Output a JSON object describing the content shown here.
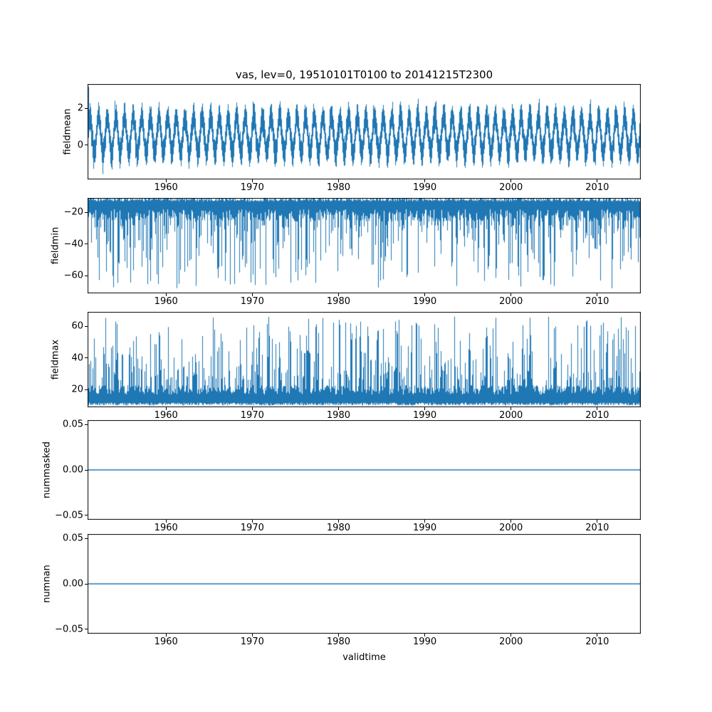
{
  "figure": {
    "title": "vas, lev=0, 19510101T0100 to 20141215T2300",
    "xlabel": "validtime",
    "background": "#ffffff",
    "line_color": "#1f77b4"
  },
  "chart_data": [
    {
      "type": "line",
      "name": "fieldmean",
      "ylabel": "fieldmean",
      "x_range": [
        1950.9,
        2015.05
      ],
      "ylim": [
        -1.9,
        3.35
      ],
      "xticks": [
        1960,
        1970,
        1980,
        1990,
        2000,
        2010
      ],
      "xtick_labels": [
        "1960",
        "1970",
        "1980",
        "1990",
        "2000",
        "2010"
      ],
      "yticks": [
        {
          "v": 2,
          "label": "2"
        },
        {
          "v": 0,
          "label": "0"
        }
      ],
      "grid": false,
      "legend": false,
      "series_color": "#1f77b4",
      "pattern": {
        "kind": "seasonal-band",
        "mean": 0.55,
        "seasonal_amplitude": 1.0,
        "band_halfwidth": [
          0.45,
          0.8
        ],
        "period_years": 1,
        "start_spike": 3.2,
        "description": "Dense annual oscillation 1951-2014, roughly between -1.5 and 2.6, initial spike near 3.2"
      }
    },
    {
      "type": "line",
      "name": "fieldmin",
      "ylabel": "fieldmin",
      "x_range": [
        1950.9,
        2015.05
      ],
      "ylim": [
        -71,
        -11
      ],
      "xticks": [
        1960,
        1970,
        1980,
        1990,
        2000,
        2010
      ],
      "xtick_labels": [
        "1960",
        "1970",
        "1980",
        "1990",
        "2000",
        "2010"
      ],
      "yticks": [
        {
          "v": -20,
          "label": "−20"
        },
        {
          "v": -40,
          "label": "−40"
        },
        {
          "v": -60,
          "label": "−60"
        }
      ],
      "grid": false,
      "legend": false,
      "series_color": "#1f77b4",
      "pattern": {
        "kind": "noise-band-spikes",
        "band": [
          -12,
          -22
        ],
        "band_jitter": 8,
        "spike_prob": 0.42,
        "spike_range": [
          -28,
          -68
        ],
        "description": "Dense band between about -12 and -30 with frequent downward spikes reaching about -70"
      }
    },
    {
      "type": "line",
      "name": "fieldmax",
      "ylabel": "fieldmax",
      "x_range": [
        1950.9,
        2015.05
      ],
      "ylim": [
        9,
        69
      ],
      "xticks": [
        1960,
        1970,
        1980,
        1990,
        2000,
        2010
      ],
      "xtick_labels": [
        "1960",
        "1970",
        "1980",
        "1990",
        "2000",
        "2010"
      ],
      "yticks": [
        {
          "v": 60,
          "label": "60"
        },
        {
          "v": 40,
          "label": "40"
        },
        {
          "v": 20,
          "label": "20"
        }
      ],
      "grid": false,
      "legend": false,
      "series_color": "#1f77b4",
      "pattern": {
        "kind": "noise-band-spikes",
        "band": [
          11,
          20
        ],
        "band_jitter": 6,
        "spike_prob": 0.4,
        "spike_range": [
          26,
          66
        ],
        "description": "Dense band between about 10 and 25 with frequent upward spikes reaching about 67"
      }
    },
    {
      "type": "line",
      "name": "nummasked",
      "ylabel": "nummasked",
      "x_range": [
        1950.9,
        2015.05
      ],
      "ylim": [
        -0.055,
        0.055
      ],
      "xticks": [
        1960,
        1970,
        1980,
        1990,
        2000,
        2010
      ],
      "xtick_labels": [
        "1960",
        "1970",
        "1980",
        "1990",
        "2000",
        "2010"
      ],
      "yticks": [
        {
          "v": 0.05,
          "label": "0.05"
        },
        {
          "v": 0,
          "label": "0.00"
        },
        {
          "v": -0.05,
          "label": "−0.05"
        }
      ],
      "grid": false,
      "legend": false,
      "series_color": "#1f77b4",
      "pattern": {
        "kind": "constant",
        "value": 0,
        "description": "Constant zero line for entire period"
      }
    },
    {
      "type": "line",
      "name": "numnan",
      "ylabel": "numnan",
      "xlabel": "validtime",
      "x_range": [
        1950.9,
        2015.05
      ],
      "ylim": [
        -0.055,
        0.055
      ],
      "xticks": [
        1960,
        1970,
        1980,
        1990,
        2000,
        2010
      ],
      "xtick_labels": [
        "1960",
        "1970",
        "1980",
        "1990",
        "2000",
        "2010"
      ],
      "yticks": [
        {
          "v": 0.05,
          "label": "0.05"
        },
        {
          "v": 0,
          "label": "0.00"
        },
        {
          "v": -0.05,
          "label": "−0.05"
        }
      ],
      "grid": false,
      "legend": false,
      "series_color": "#1f77b4",
      "pattern": {
        "kind": "constant",
        "value": 0,
        "description": "Constant zero line for entire period"
      }
    }
  ]
}
